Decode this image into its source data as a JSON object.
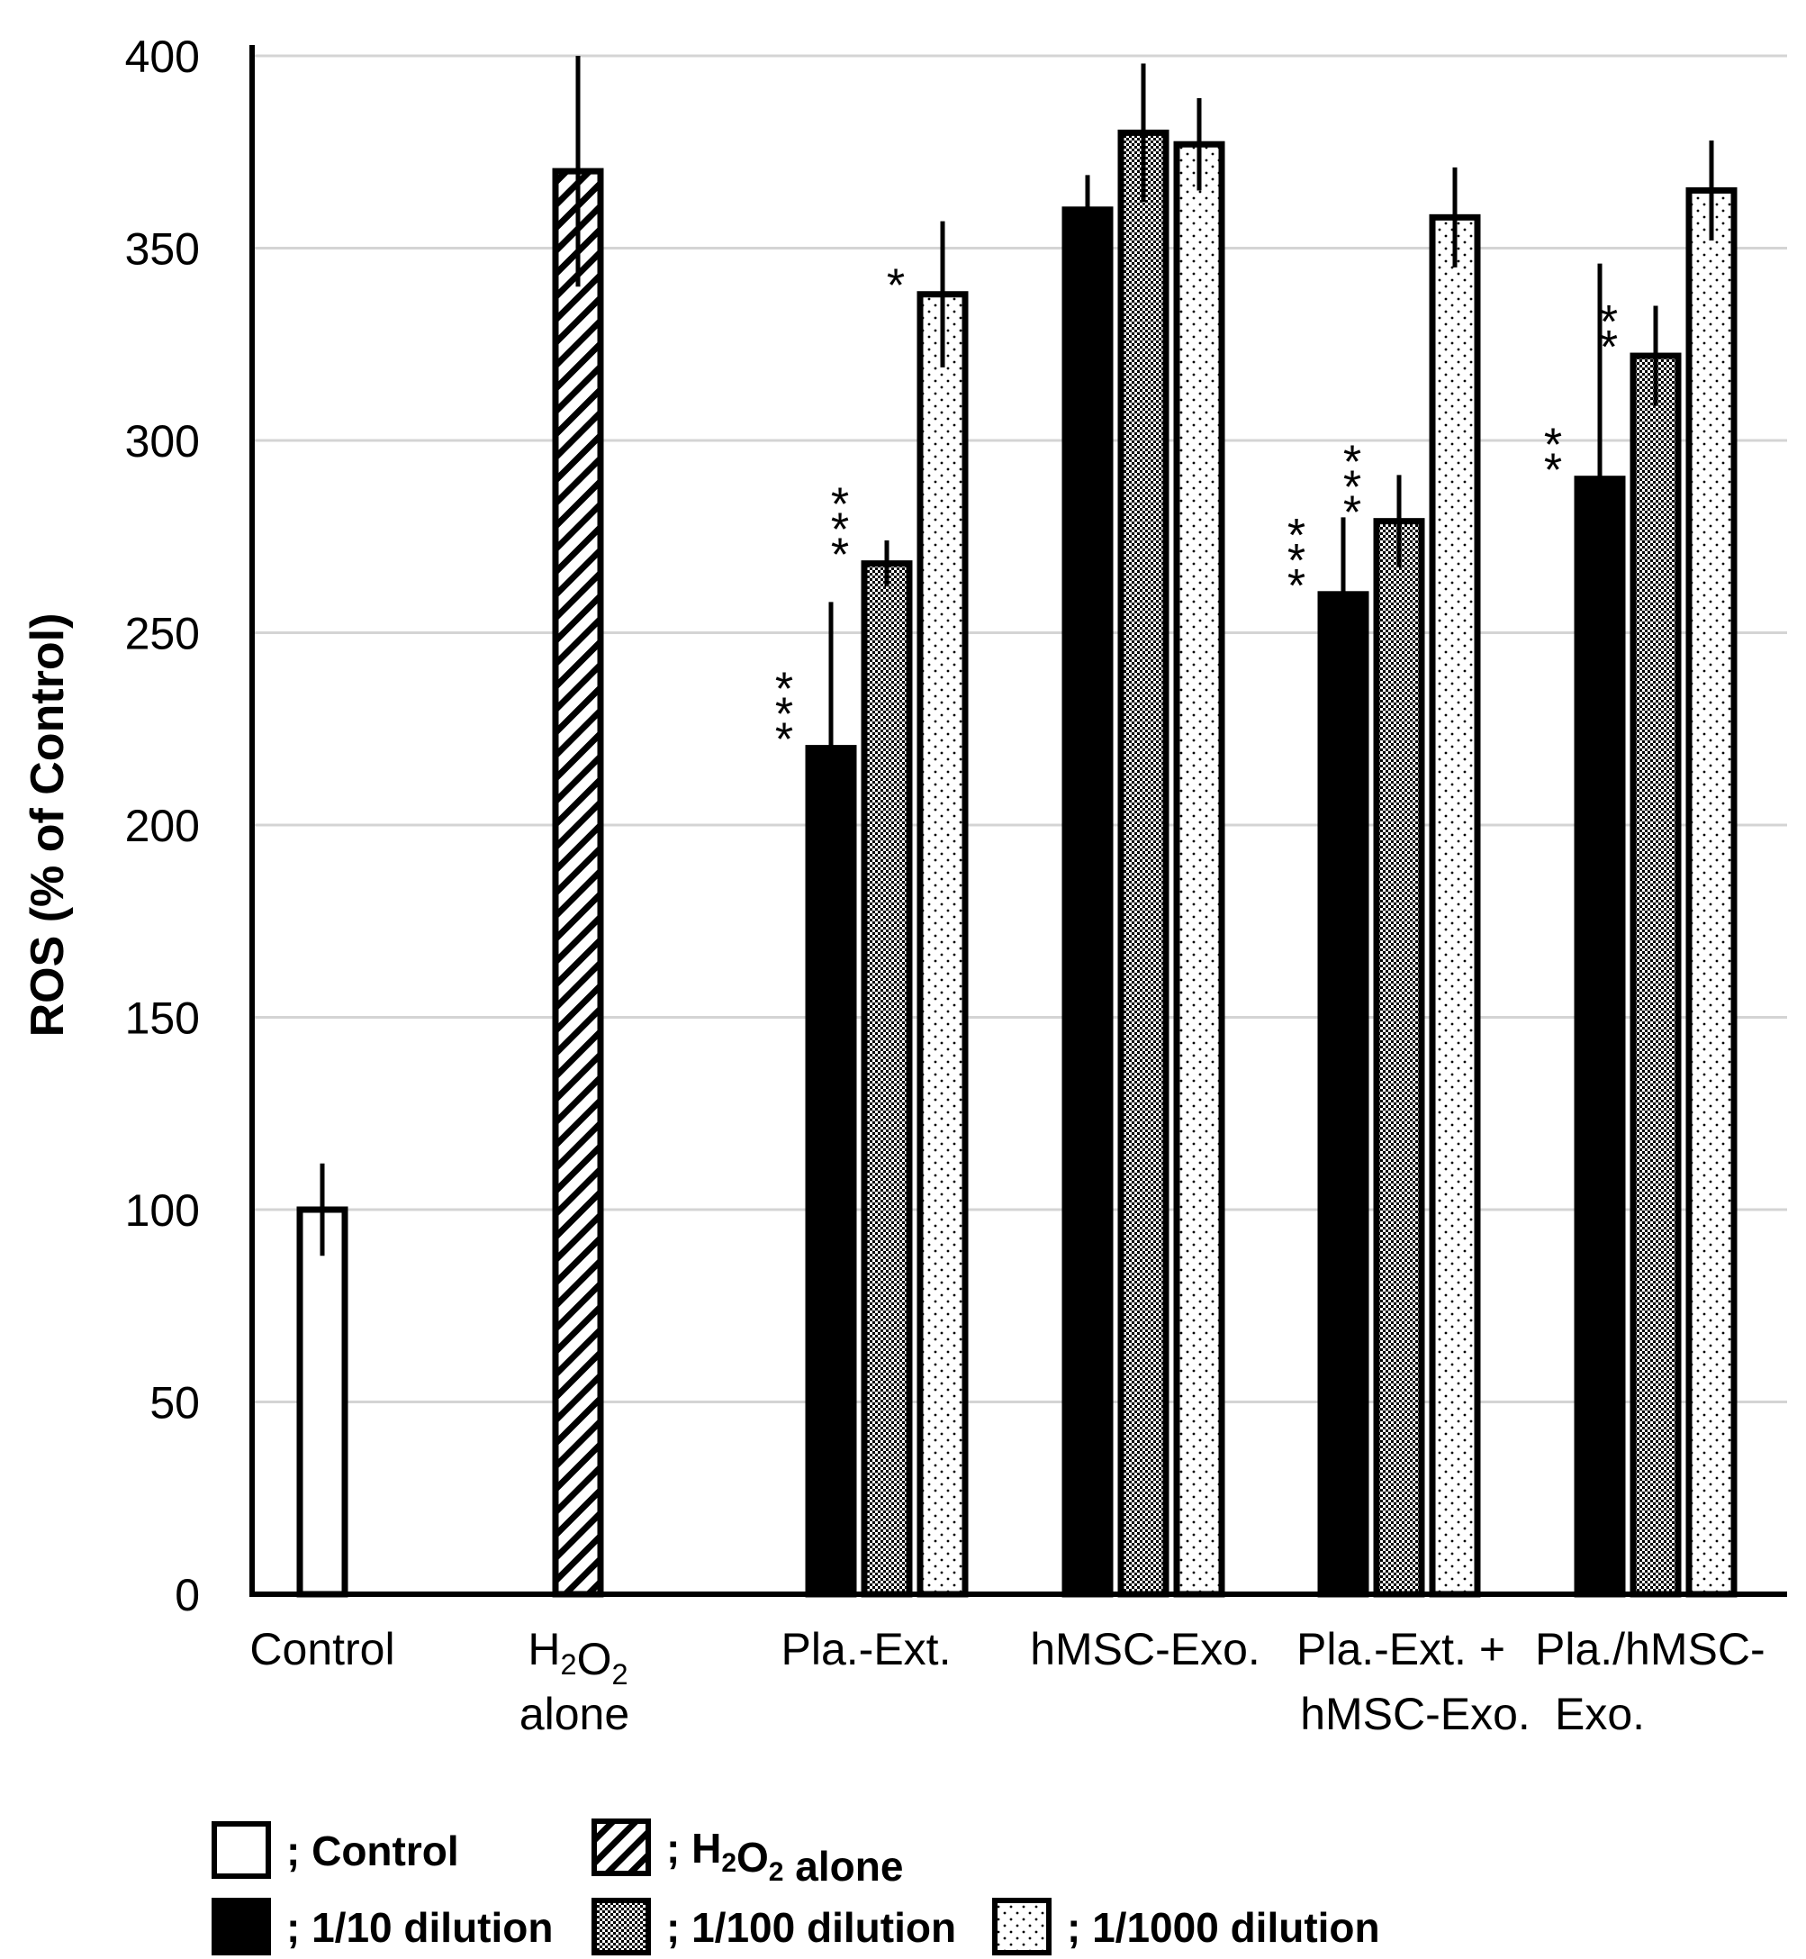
{
  "chart_data": {
    "type": "bar",
    "title": "",
    "xlabel": "",
    "ylabel": "ROS (% of Control)",
    "ylim": [
      0,
      400
    ],
    "yticks": [
      0,
      50,
      100,
      150,
      200,
      250,
      300,
      350,
      400
    ],
    "grid": true,
    "categories": [
      {
        "lines": [
          "Control"
        ]
      },
      {
        "lines": [
          "H2O2",
          "alone"
        ],
        "subscript_first_line": true
      },
      {
        "lines": [
          "Pla.-Ext."
        ]
      },
      {
        "lines": [
          "hMSC-Exo."
        ]
      },
      {
        "lines": [
          "Pla.-Ext. +",
          "hMSC-Exo."
        ]
      },
      {
        "lines": [
          "Pla./hMSC-",
          "Exo."
        ]
      }
    ],
    "series": [
      {
        "name": "Control",
        "pattern": "white",
        "legend": "; Control"
      },
      {
        "name": "H2O2 alone",
        "pattern": "hatch",
        "legend": "; H2O2 alone"
      },
      {
        "name": "1/10 dilution",
        "pattern": "black",
        "legend": "; 1/10 dilution"
      },
      {
        "name": "1/100 dilution",
        "pattern": "checker",
        "legend": "; 1/100 dilution"
      },
      {
        "name": "1/1000 dilution",
        "pattern": "dots",
        "legend": "; 1/1000 dilution"
      }
    ],
    "bars": [
      {
        "category": 0,
        "series": 0,
        "value": 100,
        "err": 12,
        "sig": ""
      },
      {
        "category": 1,
        "series": 1,
        "value": 370,
        "err": 30,
        "sig": ""
      },
      {
        "category": 2,
        "series": 2,
        "value": 220,
        "err": 38,
        "sig": "***"
      },
      {
        "category": 2,
        "series": 3,
        "value": 268,
        "err": 6,
        "sig": "***"
      },
      {
        "category": 2,
        "series": 4,
        "value": 338,
        "err": 19,
        "sig": "*"
      },
      {
        "category": 3,
        "series": 2,
        "value": 360,
        "err": 9,
        "sig": ""
      },
      {
        "category": 3,
        "series": 3,
        "value": 380,
        "err": 18,
        "sig": ""
      },
      {
        "category": 3,
        "series": 4,
        "value": 377,
        "err": 12,
        "sig": ""
      },
      {
        "category": 4,
        "series": 2,
        "value": 260,
        "err": 20,
        "sig": "***"
      },
      {
        "category": 4,
        "series": 3,
        "value": 279,
        "err": 12,
        "sig": "***"
      },
      {
        "category": 4,
        "series": 4,
        "value": 358,
        "err": 13,
        "sig": ""
      },
      {
        "category": 5,
        "series": 2,
        "value": 290,
        "err": 56,
        "sig": "**"
      },
      {
        "category": 5,
        "series": 3,
        "value": 322,
        "err": 13,
        "sig": "**"
      },
      {
        "category": 5,
        "series": 4,
        "value": 365,
        "err": 13,
        "sig": ""
      }
    ]
  }
}
